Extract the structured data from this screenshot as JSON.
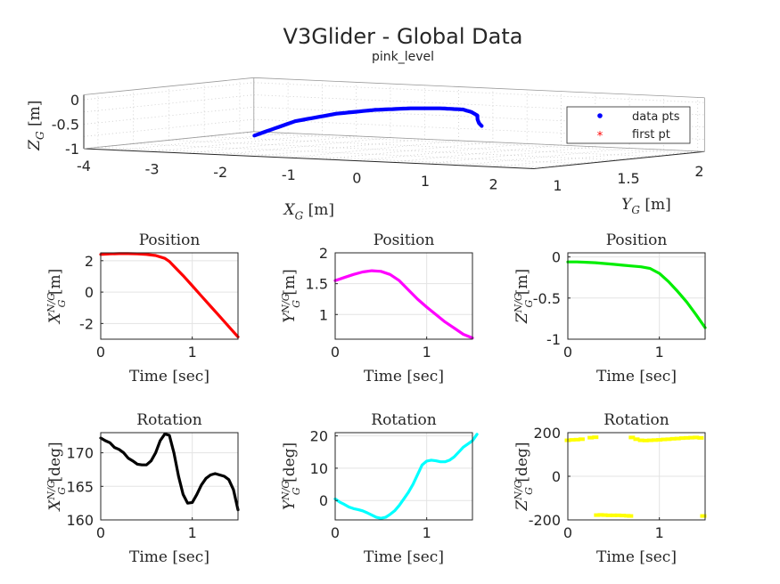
{
  "figure": {
    "title": "V3Glider - Global Data",
    "subtitle": "pink_level"
  },
  "chart_data": [
    {
      "type": "scatter3d",
      "xlabel": "X_G [m]",
      "ylabel": "Y_G [m]",
      "zlabel": "Z_G [m]",
      "xticks": [
        "-4",
        "-3",
        "-2",
        "-1",
        "0",
        "1",
        "2"
      ],
      "yticks": [
        "1",
        "1.5",
        "2"
      ],
      "zticks": [
        "0",
        "-0.5",
        "-1"
      ],
      "xlim": [
        -4,
        2.6
      ],
      "ylim": [
        0.9,
        2.1
      ],
      "zlim": [
        -1,
        0.1
      ],
      "grid": true,
      "legend": {
        "position": "right",
        "entries": [
          {
            "label": "data pts",
            "color": "#0000ff",
            "marker": "dot"
          },
          {
            "label": "first pt",
            "color": "#ff0000",
            "marker": "asterisk"
          }
        ]
      },
      "series": [
        {
          "name": "data pts",
          "color": "#0000ff",
          "x": [
            -2.85,
            -2.4,
            -1.9,
            -1.4,
            -0.9,
            -0.4,
            0.1,
            0.6,
            1.1,
            1.6,
            2.1,
            2.45
          ],
          "y": [
            1.55,
            1.62,
            1.67,
            1.7,
            1.71,
            1.68,
            1.6,
            1.42,
            1.22,
            0.98,
            0.75,
            0.6
          ],
          "z": [
            -0.85,
            -0.55,
            -0.38,
            -0.28,
            -0.22,
            -0.18,
            -0.15,
            -0.12,
            -0.1,
            -0.08,
            -0.06,
            -0.05
          ]
        },
        {
          "name": "first pt",
          "color": "#ff0000",
          "x": [
            2.45
          ],
          "y": [
            1.55
          ],
          "z": [
            -0.05
          ]
        }
      ]
    },
    {
      "type": "line",
      "title": "Position",
      "xlabel": "Time [sec]",
      "ylabel": "X_G^{N/G} [m]",
      "color": "#ff0000",
      "xlim": [
        0,
        1.5
      ],
      "ylim": [
        -3,
        2.5
      ],
      "xticks": [
        0,
        1
      ],
      "yticks": [
        2,
        0,
        -2
      ],
      "grid": true,
      "x": [
        0,
        0.1,
        0.2,
        0.3,
        0.4,
        0.5,
        0.6,
        0.7,
        0.75,
        0.8,
        0.9,
        1.0,
        1.1,
        1.2,
        1.3,
        1.4,
        1.5
      ],
      "y": [
        2.4,
        2.43,
        2.45,
        2.45,
        2.44,
        2.4,
        2.33,
        2.15,
        1.95,
        1.65,
        1.05,
        0.4,
        -0.25,
        -0.9,
        -1.55,
        -2.2,
        -2.85
      ]
    },
    {
      "type": "line",
      "title": "Position",
      "xlabel": "Time [sec]",
      "ylabel": "Y_G^{N/G} [m]",
      "color": "#ff00ff",
      "xlim": [
        0,
        1.5
      ],
      "ylim": [
        0.6,
        2.0
      ],
      "xticks": [
        0,
        1
      ],
      "yticks": [
        2,
        1.5,
        1
      ],
      "grid": true,
      "x": [
        0,
        0.1,
        0.2,
        0.3,
        0.4,
        0.5,
        0.6,
        0.7,
        0.8,
        0.9,
        1.0,
        1.1,
        1.2,
        1.3,
        1.4,
        1.5
      ],
      "y": [
        1.55,
        1.6,
        1.65,
        1.69,
        1.71,
        1.7,
        1.65,
        1.55,
        1.4,
        1.25,
        1.12,
        1.0,
        0.88,
        0.78,
        0.68,
        0.62
      ]
    },
    {
      "type": "line",
      "title": "Position",
      "xlabel": "Time [sec]",
      "ylabel": "Z_G^{N/G} [m]",
      "color": "#00ee00",
      "xlim": [
        0,
        1.5
      ],
      "ylim": [
        -1,
        0.05
      ],
      "xticks": [
        0,
        1
      ],
      "yticks": [
        0,
        -0.5,
        -1
      ],
      "grid": true,
      "x": [
        0,
        0.1,
        0.2,
        0.3,
        0.4,
        0.5,
        0.6,
        0.7,
        0.8,
        0.9,
        1.0,
        1.1,
        1.2,
        1.3,
        1.4,
        1.5
      ],
      "y": [
        -0.06,
        -0.06,
        -0.065,
        -0.07,
        -0.08,
        -0.09,
        -0.1,
        -0.11,
        -0.12,
        -0.14,
        -0.2,
        -0.3,
        -0.42,
        -0.55,
        -0.7,
        -0.86
      ]
    },
    {
      "type": "line",
      "title": "Rotation",
      "xlabel": "Time [sec]",
      "ylabel": "X_G^{N/G} [deg]",
      "color": "#000000",
      "xlim": [
        0,
        1.5
      ],
      "ylim": [
        160,
        173
      ],
      "xticks": [
        0,
        1
      ],
      "yticks": [
        170,
        165,
        160
      ],
      "grid": true,
      "x": [
        0,
        0.05,
        0.1,
        0.15,
        0.2,
        0.25,
        0.3,
        0.35,
        0.4,
        0.45,
        0.5,
        0.55,
        0.6,
        0.65,
        0.7,
        0.75,
        0.8,
        0.85,
        0.9,
        0.95,
        1.0,
        1.05,
        1.1,
        1.15,
        1.2,
        1.25,
        1.3,
        1.35,
        1.4,
        1.45,
        1.5
      ],
      "y": [
        172.2,
        171.8,
        171.5,
        170.8,
        170.5,
        170.0,
        169.2,
        168.8,
        168.3,
        168.2,
        168.2,
        168.8,
        170.0,
        171.8,
        172.8,
        172.6,
        170.0,
        166.5,
        163.8,
        162.5,
        162.6,
        163.8,
        165.2,
        166.2,
        166.7,
        166.9,
        166.7,
        166.5,
        166.0,
        164.5,
        161.5
      ]
    },
    {
      "type": "line",
      "title": "Rotation",
      "xlabel": "Time [sec]",
      "ylabel": "Y_G^{N/G} [deg]",
      "color": "#00ffff",
      "xlim": [
        0,
        1.5
      ],
      "ylim": [
        -6,
        21
      ],
      "xticks": [
        0,
        1
      ],
      "yticks": [
        20,
        10,
        0
      ],
      "grid": true,
      "x": [
        0,
        0.05,
        0.1,
        0.15,
        0.2,
        0.25,
        0.3,
        0.35,
        0.4,
        0.45,
        0.5,
        0.55,
        0.6,
        0.65,
        0.7,
        0.75,
        0.8,
        0.85,
        0.9,
        0.95,
        1.0,
        1.05,
        1.1,
        1.15,
        1.2,
        1.25,
        1.3,
        1.35,
        1.4,
        1.45,
        1.5,
        1.55
      ],
      "y": [
        0.5,
        -0.5,
        -1.2,
        -2.0,
        -2.5,
        -2.8,
        -3.2,
        -3.8,
        -4.5,
        -5.2,
        -5.5,
        -5.2,
        -4.3,
        -3.2,
        -1.5,
        0.5,
        2.5,
        5.0,
        8.0,
        11.0,
        12.2,
        12.5,
        12.3,
        12.0,
        12.0,
        12.5,
        13.5,
        15.0,
        16.5,
        17.5,
        18.5,
        20.5
      ]
    },
    {
      "type": "scatter",
      "title": "Rotation",
      "xlabel": "Time [sec]",
      "ylabel": "Z_G^{N/G} [deg]",
      "color": "#ffff00",
      "xlim": [
        0,
        1.5
      ],
      "ylim": [
        -200,
        200
      ],
      "xticks": [
        0,
        1
      ],
      "yticks": [
        200,
        0,
        -200
      ],
      "grid": true,
      "x": [
        0,
        0.05,
        0.1,
        0.15,
        0.25,
        0.3,
        0.32,
        0.36,
        0.4,
        0.45,
        0.5,
        0.55,
        0.6,
        0.65,
        0.68,
        0.7,
        0.75,
        0.8,
        0.85,
        0.9,
        0.95,
        1.0,
        1.05,
        1.1,
        1.15,
        1.2,
        1.25,
        1.3,
        1.35,
        1.4,
        1.45,
        1.48
      ],
      "y": [
        165,
        167,
        168,
        170,
        177,
        179,
        -178,
        -177,
        -178,
        -179,
        -179,
        -179,
        -180,
        -181,
        -182,
        178,
        170,
        165,
        164,
        165,
        166,
        167,
        169,
        170,
        172,
        173,
        175,
        176,
        177,
        178,
        176,
        -182
      ]
    }
  ]
}
